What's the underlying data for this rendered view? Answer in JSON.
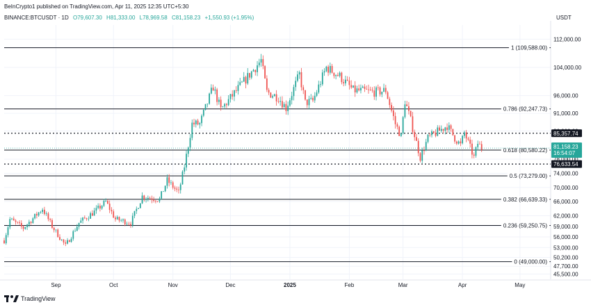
{
  "header": {
    "published_by": "BeInCrypto1 published on TradingView.com, Apr 11, 2025 12:35 UTC+5:30",
    "symbol": "BINANCE:BTCUSDT · 1D",
    "open": "O79,607.30",
    "high": "H81,333.00",
    "low": "L78,969.58",
    "close": "C81,158.23",
    "change": "+1,550.93 (+1.95%)",
    "currency": "USDT"
  },
  "footer": {
    "brand": "TradingView"
  },
  "colors": {
    "up": "#26a69a",
    "down": "#ef5350",
    "grid": "#f0f3fa",
    "fib_line": "#131722",
    "label_dark": "#131722",
    "label_price": "#26a69a"
  },
  "chart_data": {
    "type": "candlestick",
    "symbol": "BINANCE:BTCUSDT",
    "interval": "1D",
    "y_axis": {
      "currency": "USDT",
      "range": [
        44000,
        116000
      ],
      "ticks": [
        "112,000.00",
        "104,000.00",
        "96,000.00",
        "91,000.00",
        "86,000.00",
        "78,000.00",
        "74,000.00",
        "70,000.00",
        "66,000.00",
        "62,000.00",
        "59,000.00",
        "56,000.00",
        "53,000.00",
        "50,200.00",
        "47,700.00",
        "45,500.00"
      ],
      "tick_values": [
        112000,
        104000,
        96000,
        91000,
        86000,
        78000,
        74000,
        70000,
        66000,
        62000,
        59000,
        56000,
        53000,
        50200,
        47700,
        45500
      ]
    },
    "x_axis": {
      "labels": [
        "Sep",
        "Oct",
        "Nov",
        "Dec",
        "2025",
        "Feb",
        "Mar",
        "Apr",
        "May"
      ],
      "label_dates": [
        "2024-09-01",
        "2024-10-01",
        "2024-11-01",
        "2024-12-01",
        "2025-01-01",
        "2025-02-01",
        "2025-03-01",
        "2025-04-01",
        "2025-05-01"
      ],
      "range": [
        "2024-08-05",
        "2025-05-17"
      ]
    },
    "fibonacci_levels": [
      {
        "label": "1 (109,588.00)",
        "value": 109588
      },
      {
        "label": "0.786 (92,247.73)",
        "value": 92247.73
      },
      {
        "label": "0.618 (80,580.22)",
        "value": 80580.22
      },
      {
        "label": "0.5 (73,279.00)",
        "value": 73279
      },
      {
        "label": "0.382 (66,639.33)",
        "value": 66639.33
      },
      {
        "label": "0.236 (59,250.75)",
        "value": 59250.75
      },
      {
        "label": "0 (49,000.00)",
        "value": 49000
      }
    ],
    "horizontal_lines": [
      {
        "label": "85,357.74",
        "value": 85357.74,
        "style": "dotted"
      },
      {
        "label": "76,633.54",
        "value": 76633.54,
        "style": "dotted"
      }
    ],
    "current_price": {
      "label": "81,158.23",
      "countdown": "16:54:07",
      "value": 81158.23
    },
    "series": [
      {
        "name": "BTCUSDT",
        "anchors": [
          [
            "2024-08-05",
            55000
          ],
          [
            "2024-08-08",
            61000
          ],
          [
            "2024-08-15",
            58500
          ],
          [
            "2024-08-25",
            64000
          ],
          [
            "2024-08-30",
            59000
          ],
          [
            "2024-09-06",
            53500
          ],
          [
            "2024-09-13",
            60000
          ],
          [
            "2024-09-22",
            63500
          ],
          [
            "2024-09-27",
            66000
          ],
          [
            "2024-10-02",
            61000
          ],
          [
            "2024-10-10",
            60000
          ],
          [
            "2024-10-16",
            67500
          ],
          [
            "2024-10-25",
            66600
          ],
          [
            "2024-10-29",
            72000
          ],
          [
            "2024-11-04",
            68500
          ],
          [
            "2024-11-07",
            76000
          ],
          [
            "2024-11-11",
            88000
          ],
          [
            "2024-11-15",
            88000
          ],
          [
            "2024-11-22",
            98500
          ],
          [
            "2024-11-26",
            92000
          ],
          [
            "2024-12-05",
            98000
          ],
          [
            "2024-12-17",
            106000
          ],
          [
            "2024-12-20",
            97000
          ],
          [
            "2024-12-26",
            95500
          ],
          [
            "2024-12-30",
            92500
          ],
          [
            "2025-01-06",
            102000
          ],
          [
            "2025-01-09",
            94000
          ],
          [
            "2025-01-13",
            94500
          ],
          [
            "2025-01-20",
            104000
          ],
          [
            "2025-01-27",
            101500
          ],
          [
            "2025-02-03",
            97500
          ],
          [
            "2025-02-15",
            97000
          ],
          [
            "2025-02-20",
            97500
          ],
          [
            "2025-02-25",
            88000
          ],
          [
            "2025-02-28",
            84500
          ],
          [
            "2025-03-02",
            94500
          ],
          [
            "2025-03-05",
            89000
          ],
          [
            "2025-03-10",
            78500
          ],
          [
            "2025-03-14",
            84000
          ],
          [
            "2025-03-24",
            87500
          ],
          [
            "2025-03-28",
            84000
          ],
          [
            "2025-03-31",
            82000
          ],
          [
            "2025-04-02",
            85500
          ],
          [
            "2025-04-07",
            78500
          ],
          [
            "2025-04-09",
            82500
          ],
          [
            "2025-04-11",
            81158
          ]
        ]
      }
    ]
  }
}
